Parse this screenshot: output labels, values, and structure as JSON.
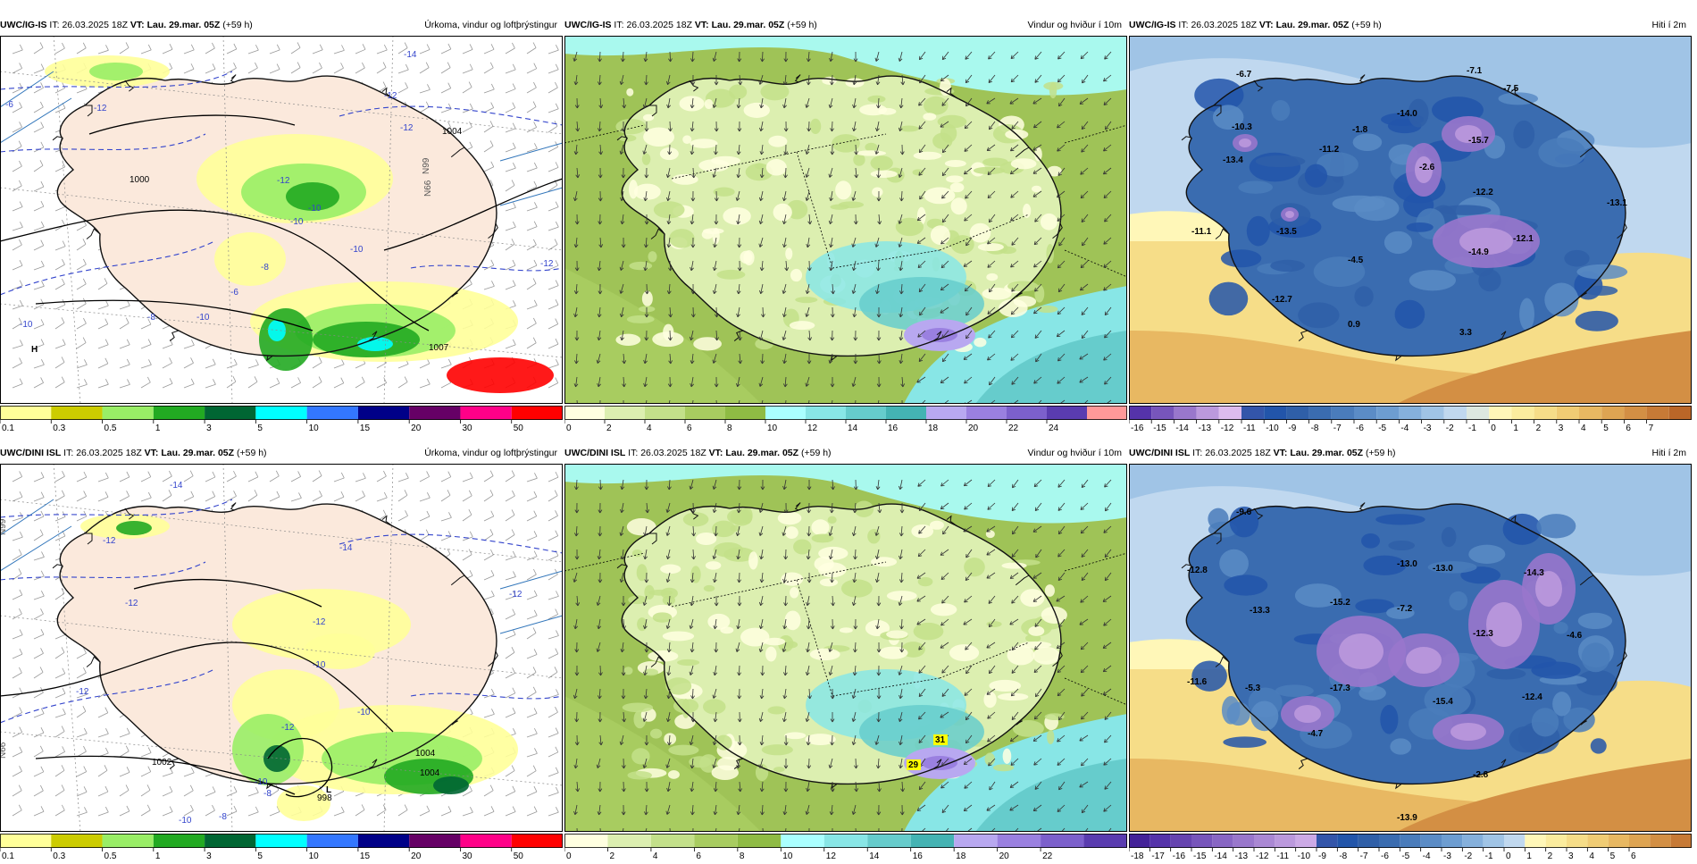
{
  "panels": {
    "p1": {
      "source": "UWC/IG-IS",
      "it_label": "IT:",
      "it": "26.03.2025 18Z",
      "vt_label": "VT:",
      "vt": "Lau. 29.mar. 05Z",
      "lead": "(+59 h)",
      "title": "Úrkoma, vindur og loftþrýstingur",
      "map_labels": [
        "-14",
        "-12",
        "-12",
        "-12",
        "-10",
        "-10",
        "-8",
        "-6",
        "-10",
        "-8",
        "-10",
        "-12",
        "-10",
        "-12",
        "1000",
        "1004",
        "H",
        "1007",
        "N99",
        "N66",
        "-6"
      ],
      "colorbar": {
        "colors": [
          "#ffff99",
          "#cccc00",
          "#99ee66",
          "#22aa22",
          "#006633",
          "#00ffff",
          "#3377ff",
          "#000088",
          "#660066",
          "#ff0088",
          "#ff0000"
        ],
        "ticks": [
          "0.1",
          "0.3",
          "0.5",
          "1",
          "3",
          "5",
          "10",
          "15",
          "20",
          "30",
          "50"
        ]
      }
    },
    "p2": {
      "source": "UWC/IG-IS",
      "it_label": "IT:",
      "it": "26.03.2025 18Z",
      "vt_label": "VT:",
      "vt": "Lau. 29.mar. 05Z",
      "lead": "(+59 h)",
      "title": "Vindur og hviður í 10m",
      "map_labels": [],
      "colorbar": {
        "colors": [
          "#ffffe0",
          "#dcefb0",
          "#c3e08a",
          "#a8cc60",
          "#8fbb44",
          "#aaffff",
          "#88e6e6",
          "#66cccc",
          "#44b3b3",
          "#b8a8f0",
          "#9a80e0",
          "#7c60cc",
          "#5a3cb0",
          "#ff9999"
        ],
        "ticks": [
          "0",
          "2",
          "4",
          "6",
          "8",
          "10",
          "12",
          "14",
          "16",
          "18",
          "20",
          "22",
          "24"
        ]
      }
    },
    "p3": {
      "source": "UWC/IG-IS",
      "it_label": "IT:",
      "it": "26.03.2025 18Z",
      "vt_label": "VT:",
      "vt": "Lau. 29.mar. 05Z",
      "lead": "(+59 h)",
      "title": "Hiti í 2m",
      "map_labels": [
        "-6.7",
        "-10.3",
        "-13.4",
        "-11.2",
        "-1.8",
        "-14.0",
        "-7.1",
        "-7.5",
        "-15.7",
        "-2.6",
        "-12.2",
        "-13.1",
        "-11.1",
        "-13.5",
        "-4.5",
        "-14.9",
        "-12.1",
        "-12.7",
        "0.9",
        "3.3"
      ],
      "colorbar": {
        "colors": [
          "#5533aa",
          "#7755bb",
          "#9977cc",
          "#bb99dd",
          "#ddbbee",
          "#3355aa",
          "#2255aa",
          "#2f5fa8",
          "#3a6cb0",
          "#4a7cbb",
          "#5b8cc6",
          "#6d9dd1",
          "#85b0dc",
          "#a0c4e6",
          "#c0d8ef",
          "#dde8e0",
          "#fff7b8",
          "#fbec9e",
          "#f6dd88",
          "#f0cc74",
          "#e8b862",
          "#dea452",
          "#d38f44",
          "#c77a36",
          "#ba6628"
        ],
        "ticks": [
          "-16",
          "-15",
          "-14",
          "-13",
          "-12",
          "-11",
          "-10",
          "-9",
          "-8",
          "-7",
          "-6",
          "-5",
          "-4",
          "-3",
          "-2",
          "-1",
          "0",
          "1",
          "2",
          "3",
          "4",
          "5",
          "6",
          "7"
        ]
      }
    },
    "p4": {
      "source": "UWC/DINI ISL",
      "it_label": "IT:",
      "it": "26.03.2025 18Z",
      "vt_label": "VT:",
      "vt": "Lau. 29.mar. 05Z",
      "lead": "(+59 h)",
      "title": "Úrkoma, vindur og loftþrýstingur",
      "map_labels": [
        "-14",
        "-12",
        "-14",
        "-12",
        "-12",
        "-12",
        "-10",
        "-12",
        "-10",
        "-10",
        "-8",
        "-10",
        "-12",
        "1002",
        "1004",
        "1004",
        "998",
        "L",
        "N99",
        "N66",
        "-8"
      ],
      "colorbar": {
        "colors": [
          "#ffff99",
          "#cccc00",
          "#99ee66",
          "#22aa22",
          "#006633",
          "#00ffff",
          "#3377ff",
          "#000088",
          "#660066",
          "#ff0088",
          "#ff0000"
        ],
        "ticks": [
          "0.1",
          "0.3",
          "0.5",
          "1",
          "3",
          "5",
          "10",
          "15",
          "20",
          "30",
          "50"
        ]
      }
    },
    "p5": {
      "source": "UWC/DINI ISL",
      "it_label": "IT:",
      "it": "26.03.2025 18Z",
      "vt_label": "VT:",
      "vt": "Lau. 29.mar. 05Z",
      "lead": "(+59 h)",
      "title": "Vindur og hviður í 10m",
      "map_labels": [
        "31",
        "29"
      ],
      "colorbar": {
        "colors": [
          "#ffffe0",
          "#dcefb0",
          "#c3e08a",
          "#a8cc60",
          "#8fbb44",
          "#aaffff",
          "#88e6e6",
          "#66cccc",
          "#44b3b3",
          "#b8a8f0",
          "#9a80e0",
          "#7c60cc",
          "#5a3cb0"
        ],
        "ticks": [
          "0",
          "2",
          "4",
          "6",
          "8",
          "10",
          "12",
          "14",
          "16",
          "18",
          "20",
          "22"
        ]
      }
    },
    "p6": {
      "source": "UWC/DINI ISL",
      "it_label": "IT:",
      "it": "26.03.2025 18Z",
      "vt_label": "VT:",
      "vt": "Lau. 29.mar. 05Z",
      "lead": "(+59 h)",
      "title": "Hiti í 2m",
      "map_labels": [
        "-9.6",
        "-12.8",
        "-13.0",
        "-13.0",
        "-14.3",
        "-13.3",
        "-15.2",
        "-7.2",
        "-12.3",
        "-4.6",
        "-11.6",
        "-5.3",
        "-17.3",
        "-15.4",
        "-12.4",
        "-4.7",
        "-2.8",
        "-13.9"
      ],
      "colorbar": {
        "colors": [
          "#442299",
          "#5533aa",
          "#6644b0",
          "#7755bb",
          "#8866c4",
          "#9977cc",
          "#aa88d4",
          "#bb99dd",
          "#ccaae6",
          "#3355aa",
          "#2255aa",
          "#2f5fa8",
          "#3a6cb0",
          "#4a7cbb",
          "#5b8cc6",
          "#6d9dd1",
          "#85b0dc",
          "#a0c4e6",
          "#c0d8ef",
          "#fff7b8",
          "#fbec9e",
          "#f6dd88",
          "#f0cc74",
          "#e8b862",
          "#dea452",
          "#d38f44",
          "#c77a36"
        ],
        "ticks": [
          "-18",
          "-17",
          "-16",
          "-15",
          "-14",
          "-13",
          "-12",
          "-11",
          "-10",
          "-9",
          "-8",
          "-7",
          "-6",
          "-5",
          "-4",
          "-3",
          "-2",
          "-1",
          "0",
          "1",
          "2",
          "3",
          "4",
          "5",
          "6"
        ]
      }
    }
  }
}
